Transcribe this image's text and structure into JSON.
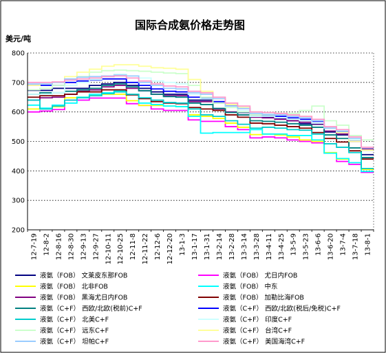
{
  "chart_data": {
    "type": "line",
    "title": "国际合成氨价格走势图",
    "ylabel": "美元/吨",
    "xlabel": "",
    "ylim": [
      200,
      800
    ],
    "yticks": [
      200,
      300,
      400,
      500,
      600,
      700,
      800
    ],
    "grid": "horizontal-dotted",
    "legend_position": "bottom",
    "x": [
      "12-7-19",
      "12-8-2",
      "12-8-16",
      "12-8-30",
      "12-9-13",
      "12-9-27",
      "12-10-11",
      "12-10-25",
      "12-11-8",
      "12-11-22",
      "12-12-6",
      "12-12-20",
      "13-1-3",
      "13-1-17",
      "13-1-31",
      "13-2-14",
      "13-2-28",
      "13-3-14",
      "13-3-28",
      "13-4-11",
      "13-4-25",
      "13-5-9",
      "13-5-23",
      "13-6-6",
      "13-6-20",
      "13-7-4",
      "13-7-18",
      "13-8-1"
    ],
    "series": [
      {
        "name": "液氨（FOB） 文莱皮东那FOB",
        "color": "#000080",
        "values": [
          673,
          673,
          680,
          680,
          680,
          690,
          695,
          700,
          690,
          680,
          668,
          660,
          660,
          640,
          640,
          630,
          620,
          598,
          590,
          582,
          578,
          570,
          560,
          558,
          532,
          522,
          500,
          455
        ]
      },
      {
        "name": "液氨（FOB） 尤日内FOB",
        "color": "#ff00ff",
        "values": [
          600,
          603,
          608,
          640,
          640,
          647,
          647,
          647,
          628,
          622,
          610,
          605,
          605,
          573,
          568,
          568,
          550,
          540,
          512,
          515,
          512,
          505,
          500,
          495,
          460,
          432,
          422,
          395
        ]
      },
      {
        "name": "液氨（FOB） 北非FOB",
        "color": "#ffff00",
        "values": [
          610,
          612,
          618,
          648,
          650,
          655,
          660,
          660,
          638,
          622,
          622,
          620,
          618,
          590,
          585,
          578,
          562,
          548,
          523,
          525,
          522,
          515,
          505,
          500,
          462,
          440,
          428,
          405
        ]
      },
      {
        "name": "液氨（FOB） 中东",
        "color": "#00ffff",
        "values": [
          623,
          613,
          623,
          630,
          650,
          660,
          665,
          672,
          658,
          630,
          625,
          620,
          618,
          585,
          528,
          530,
          530,
          530,
          540,
          525,
          525,
          520,
          520,
          505,
          460,
          442,
          428,
          398
        ]
      },
      {
        "name": "液氨（FOB） 黑海尤日内FOB",
        "color": "#800080",
        "values": [
          640,
          648,
          650,
          660,
          670,
          675,
          685,
          690,
          680,
          672,
          660,
          655,
          655,
          635,
          635,
          610,
          600,
          590,
          582,
          580,
          575,
          570,
          565,
          560,
          535,
          525,
          500,
          475
        ]
      },
      {
        "name": "液氨（FOB） 加勒比海FOB",
        "color": "#800000",
        "values": [
          650,
          655,
          655,
          660,
          668,
          668,
          675,
          675,
          658,
          645,
          635,
          630,
          628,
          615,
          610,
          605,
          590,
          582,
          562,
          560,
          555,
          550,
          545,
          530,
          510,
          498,
          468,
          440
        ]
      },
      {
        "name": "液氨（C+F） 西欧/北欧(税前)C+F",
        "color": "#008080",
        "values": [
          660,
          665,
          665,
          670,
          675,
          680,
          690,
          695,
          685,
          672,
          660,
          652,
          650,
          630,
          625,
          612,
          598,
          590,
          570,
          568,
          565,
          560,
          555,
          548,
          522,
          510,
          478,
          445
        ]
      },
      {
        "name": "液氨（C+F） 西欧/北欧(税后/免税)C+F",
        "color": "#0000ff",
        "values": [
          690,
          690,
          690,
          700,
          705,
          708,
          712,
          712,
          700,
          690,
          678,
          670,
          668,
          650,
          648,
          635,
          620,
          612,
          590,
          588,
          585,
          580,
          575,
          568,
          545,
          532,
          505,
          470
        ]
      },
      {
        "name": "液氨（C+F） 北美C+F",
        "color": "#00cccc",
        "values": [
          640,
          610,
          620,
          640,
          648,
          655,
          662,
          668,
          660,
          648,
          640,
          632,
          630,
          610,
          590,
          585,
          570,
          558,
          545,
          548,
          545,
          540,
          538,
          525,
          492,
          480,
          462,
          408
        ]
      },
      {
        "name": "液氨（C+F） 印度C+F",
        "color": "#ccffff",
        "values": [
          660,
          660,
          665,
          690,
          700,
          710,
          720,
          728,
          722,
          715,
          705,
          700,
          695,
          660,
          645,
          630,
          615,
          605,
          585,
          585,
          580,
          575,
          570,
          562,
          545,
          530,
          505,
          470
        ]
      },
      {
        "name": "液氨（C+F） 远东C+F",
        "color": "#ccffcc",
        "values": [
          675,
          680,
          690,
          710,
          720,
          735,
          740,
          742,
          740,
          738,
          735,
          732,
          730,
          690,
          650,
          630,
          615,
          600,
          590,
          590,
          590,
          595,
          605,
          620,
          570,
          555,
          520,
          505
        ]
      },
      {
        "name": "液氨（C+F） 台湾C+F",
        "color": "#ffff99",
        "values": [
          690,
          695,
          700,
          720,
          735,
          745,
          755,
          760,
          760,
          755,
          750,
          748,
          745,
          710,
          670,
          645,
          625,
          615,
          600,
          598,
          595,
          590,
          585,
          575,
          545,
          530,
          500,
          470
        ]
      },
      {
        "name": "液氨（C+F） 坦帕C+F",
        "color": "#99ccff",
        "values": [
          695,
          695,
          700,
          712,
          718,
          720,
          722,
          725,
          722,
          700,
          690,
          680,
          678,
          665,
          660,
          645,
          620,
          612,
          595,
          592,
          590,
          585,
          580,
          570,
          545,
          535,
          510,
          478
        ]
      },
      {
        "name": "液氨（C+F） 美国海湾C+F",
        "color": "#ff99cc",
        "values": [
          700,
          700,
          702,
          708,
          712,
          715,
          720,
          722,
          715,
          705,
          695,
          688,
          685,
          670,
          665,
          650,
          630,
          620,
          600,
          598,
          595,
          590,
          585,
          575,
          550,
          540,
          515,
          480
        ]
      }
    ]
  }
}
